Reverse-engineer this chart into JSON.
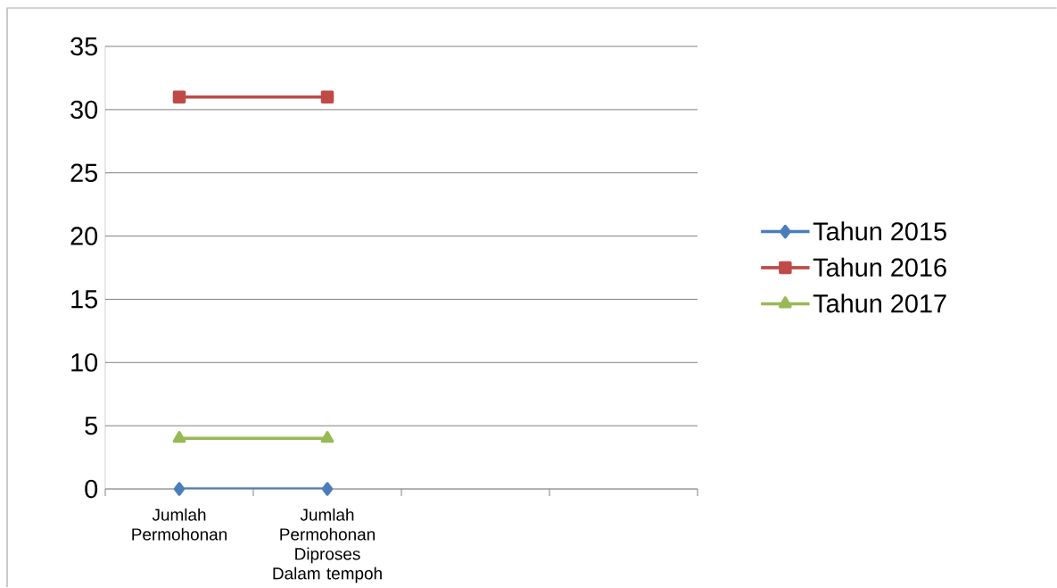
{
  "chart_data": {
    "type": "line",
    "categories": [
      "Jumlah Permohonan",
      "Jumlah Permohonan Diproses Dalam tempoh",
      null,
      null
    ],
    "series": [
      {
        "name": "Tahun 2015",
        "color": "#4a7ebb",
        "marker": "diamond",
        "values": [
          0,
          0,
          null,
          null
        ]
      },
      {
        "name": "Tahun 2016",
        "color": "#be4b48",
        "marker": "square",
        "values": [
          31,
          31,
          null,
          null
        ]
      },
      {
        "name": "Tahun 2017",
        "color": "#98b954",
        "marker": "triangle",
        "values": [
          4,
          4,
          null,
          null
        ]
      }
    ],
    "ylim": [
      0,
      35
    ],
    "yticks": [
      0,
      5,
      10,
      15,
      20,
      25,
      30,
      35
    ],
    "grid": "y",
    "legend": "right"
  }
}
